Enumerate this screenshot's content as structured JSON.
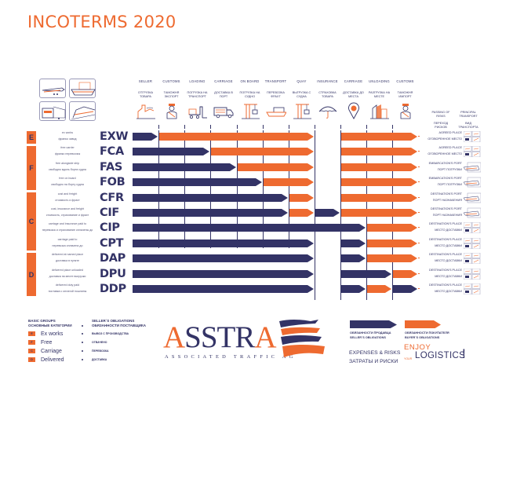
{
  "title": "INCOTERMS 2020",
  "colors": {
    "seller": "#333366",
    "buyer": "#ee6a30",
    "text": "#333366"
  },
  "columns": [
    {
      "en": "SELLER",
      "ru": "ОТГРУЗКА ТОВАРА",
      "icon": "factory-icon"
    },
    {
      "en": "CUSTOMS",
      "ru": "ТАМОЖНЯ ЭКСПОРТ",
      "icon": "customs-officer-icon"
    },
    {
      "en": "LOADING",
      "ru": "ПОГРУЗКА НА ТРАНСПОРТ",
      "icon": "forklift-icon"
    },
    {
      "en": "CARRIAGE",
      "ru": "ДОСТАВКА В ПОРТ",
      "icon": "truck-icon"
    },
    {
      "en": "ON BOARD",
      "ru": "ПОГРУЗКА НА СУДНО",
      "icon": "crane-icon"
    },
    {
      "en": "TRANSPORT",
      "ru": "ПЕРЕВОЗКА ФРАХТ",
      "icon": "ship-icon"
    },
    {
      "en": "QUAY",
      "ru": "ВЫГРУЗКА С СУДНА",
      "icon": "crane-icon"
    },
    {
      "en": "INSURANCE",
      "ru": "СТРАХОВКА ТОВАРА",
      "icon": "umbrella-icon"
    },
    {
      "en": "CARRIAGE",
      "ru": "ДОСТАВКА ДО МЕСТА",
      "icon": "location-pin-icon"
    },
    {
      "en": "UNLOADING",
      "ru": "РАЗГРУЗКА НА МЕСТЕ",
      "icon": "warehouse-icon"
    },
    {
      "en": "CUSTOMS",
      "ru": "ТАМОЖНЯ ИМПОРТ",
      "icon": "customs-officer-icon"
    }
  ],
  "right_headers": {
    "passing_en": "PASSING OF RISKS",
    "passing_ru": "ПЕРЕХОД РИСКОВ",
    "transport_en": "PRINCIPAL TRANSPORT",
    "transport_ru": "ВИД ТРАНСПОРТА"
  },
  "groups": [
    {
      "letter": "E",
      "rows": 1
    },
    {
      "letter": "F",
      "rows": 3
    },
    {
      "letter": "C",
      "rows": 4
    },
    {
      "letter": "D",
      "rows": 3
    }
  ],
  "terms": [
    {
      "code": "EXW",
      "en": "ex works",
      "ru": "франко завод",
      "risk_en": "AGREED PLACE",
      "risk_ru": "ОГОВОРЕННОЕ МЕСТО",
      "transport": "multimodal"
    },
    {
      "code": "FCA",
      "en": "free carrier",
      "ru": "франко перевозчик",
      "risk_en": "AGREED PLACE",
      "risk_ru": "ОГОВОРЕННОЕ МЕСТО",
      "transport": "multimodal"
    },
    {
      "code": "FAS",
      "en": "free alongside ship",
      "ru": "свободно вдоль борта судна",
      "risk_en": "EMBARCATION'S PORT",
      "risk_ru": "ПОРТ ПОГРУЗКИ",
      "transport": "sea"
    },
    {
      "code": "FOB",
      "en": "free on board",
      "ru": "свободно на борту судна",
      "risk_en": "EMBARCATION'S PORT",
      "risk_ru": "ПОРТ ПОГРУЗКИ",
      "transport": "sea"
    },
    {
      "code": "CFR",
      "en": "cost and freight",
      "ru": "стоимость и фрахт",
      "risk_en": "DESTINATION'S PORT",
      "risk_ru": "ПОРТ НАЗНАЧЕНИЯ",
      "transport": "sea"
    },
    {
      "code": "CIF",
      "en": "cost, insurance and freight",
      "ru": "стоимость, страхование и фрахт",
      "risk_en": "DESTINATION'S PORT",
      "risk_ru": "ПОРТ НАЗНАЧЕНИЯ",
      "transport": "sea"
    },
    {
      "code": "CIP",
      "en": "carriage and insurance paid to",
      "ru": "перевозка и страхование оплачены до",
      "risk_en": "DESTINATION'S PLACE",
      "risk_ru": "МЕСТО ДОСТАВКИ",
      "transport": "multimodal"
    },
    {
      "code": "CPT",
      "en": "carriage paid to",
      "ru": "перевозка оплачена до",
      "risk_en": "DESTINATION'S PLACE",
      "risk_ru": "МЕСТО ДОСТАВКИ",
      "transport": "multimodal"
    },
    {
      "code": "DAP",
      "en": "delivered at named place",
      "ru": "доставка в пункте",
      "risk_en": "DESTINATION'S PLACE",
      "risk_ru": "МЕСТО ДОСТАВКИ",
      "transport": "multimodal"
    },
    {
      "code": "DPU",
      "en": "delivered place unloaded",
      "ru": "доставка на месте выгрузки",
      "risk_en": "DESTINATION'S PLACE",
      "risk_ru": "МЕСТО ДОСТАВКИ",
      "transport": "multimodal"
    },
    {
      "code": "DDP",
      "en": "delivered duty paid",
      "ru": "поставка с оплатой пошлины",
      "risk_en": "DESTINATION'S PLACE",
      "risk_ru": "МЕСТО ДОСТАВКИ",
      "transport": "multimodal"
    }
  ],
  "obligation_bars": [
    [
      [
        "S",
        0,
        1
      ],
      [
        "B",
        1,
        7
      ],
      [
        "B",
        8,
        11
      ]
    ],
    [
      [
        "S",
        0,
        3
      ],
      [
        "B",
        3,
        7
      ],
      [
        "B",
        8,
        11
      ]
    ],
    [
      [
        "S",
        0,
        4
      ],
      [
        "B",
        4,
        7
      ],
      [
        "B",
        8,
        11
      ]
    ],
    [
      [
        "S",
        0,
        5
      ],
      [
        "B",
        5,
        7
      ],
      [
        "B",
        8,
        11
      ]
    ],
    [
      [
        "S",
        0,
        6
      ],
      [
        "B",
        6,
        7
      ],
      [
        "B",
        8,
        11
      ]
    ],
    [
      [
        "S",
        0,
        6
      ],
      [
        "B",
        6,
        7
      ],
      [
        "S",
        7,
        8
      ],
      [
        "B",
        8,
        11
      ]
    ],
    [
      [
        "S",
        0,
        9
      ],
      [
        "B",
        9,
        11
      ]
    ],
    [
      [
        "S",
        0,
        7
      ],
      [
        "S",
        8,
        9
      ],
      [
        "B",
        9,
        11
      ]
    ],
    [
      [
        "S",
        0,
        7
      ],
      [
        "S",
        8,
        9
      ],
      [
        "B",
        9,
        11
      ]
    ],
    [
      [
        "S",
        0,
        7
      ],
      [
        "S",
        8,
        10
      ],
      [
        "B",
        10,
        11
      ]
    ],
    [
      [
        "S",
        0,
        7
      ],
      [
        "S",
        8,
        9
      ],
      [
        "B",
        9,
        10
      ],
      [
        "S",
        10,
        11
      ]
    ]
  ],
  "legend": {
    "groups_en": "BASIC GROUPS",
    "groups_ru": "ОСНОВНЫЕ КАТЕГОРИИ",
    "obligations_en": "SELLER`S OBLIGATIONS",
    "obligations_ru": "ОБЯЗАННОСТИ ПОСТАВЩИКА",
    "items": [
      {
        "letter": "E",
        "label": "Ex works",
        "obligation": "ВЫВОЗ С ПРОИЗВОДСТВА"
      },
      {
        "letter": "F",
        "label": "Free",
        "obligation": "ОТВАЧЕНО"
      },
      {
        "letter": "C",
        "label": "Carriage",
        "obligation": "ПЕРЕВОЗКА"
      },
      {
        "letter": "D",
        "label": "Delivered",
        "obligation": "ДОСТАВКА"
      }
    ]
  },
  "brand": {
    "name_a": "A",
    "name_mid": "SSTR",
    "name_end": "A",
    "subtitle": "ASSOCIATED TRAFFIC AG"
  },
  "key": {
    "seller_ru": "ОБЯЗАННОСТИ ПРОДАВЦА",
    "seller_en": "SELLER`S OBLIGATIONS",
    "buyer_ru": "ОБЯЗАННОСТИ ПОКУПАТЕЛЯ",
    "buyer_en": "BUYER`S OBLIGATIONS",
    "expenses_en": "EXPENSES & RISKS",
    "expenses_ru": "ЗАТРАТЫ И РИСКИ",
    "enjoy": "ENJOY",
    "your": "YOUR",
    "logistics": "LOGISTICS",
    "excl": "!"
  }
}
